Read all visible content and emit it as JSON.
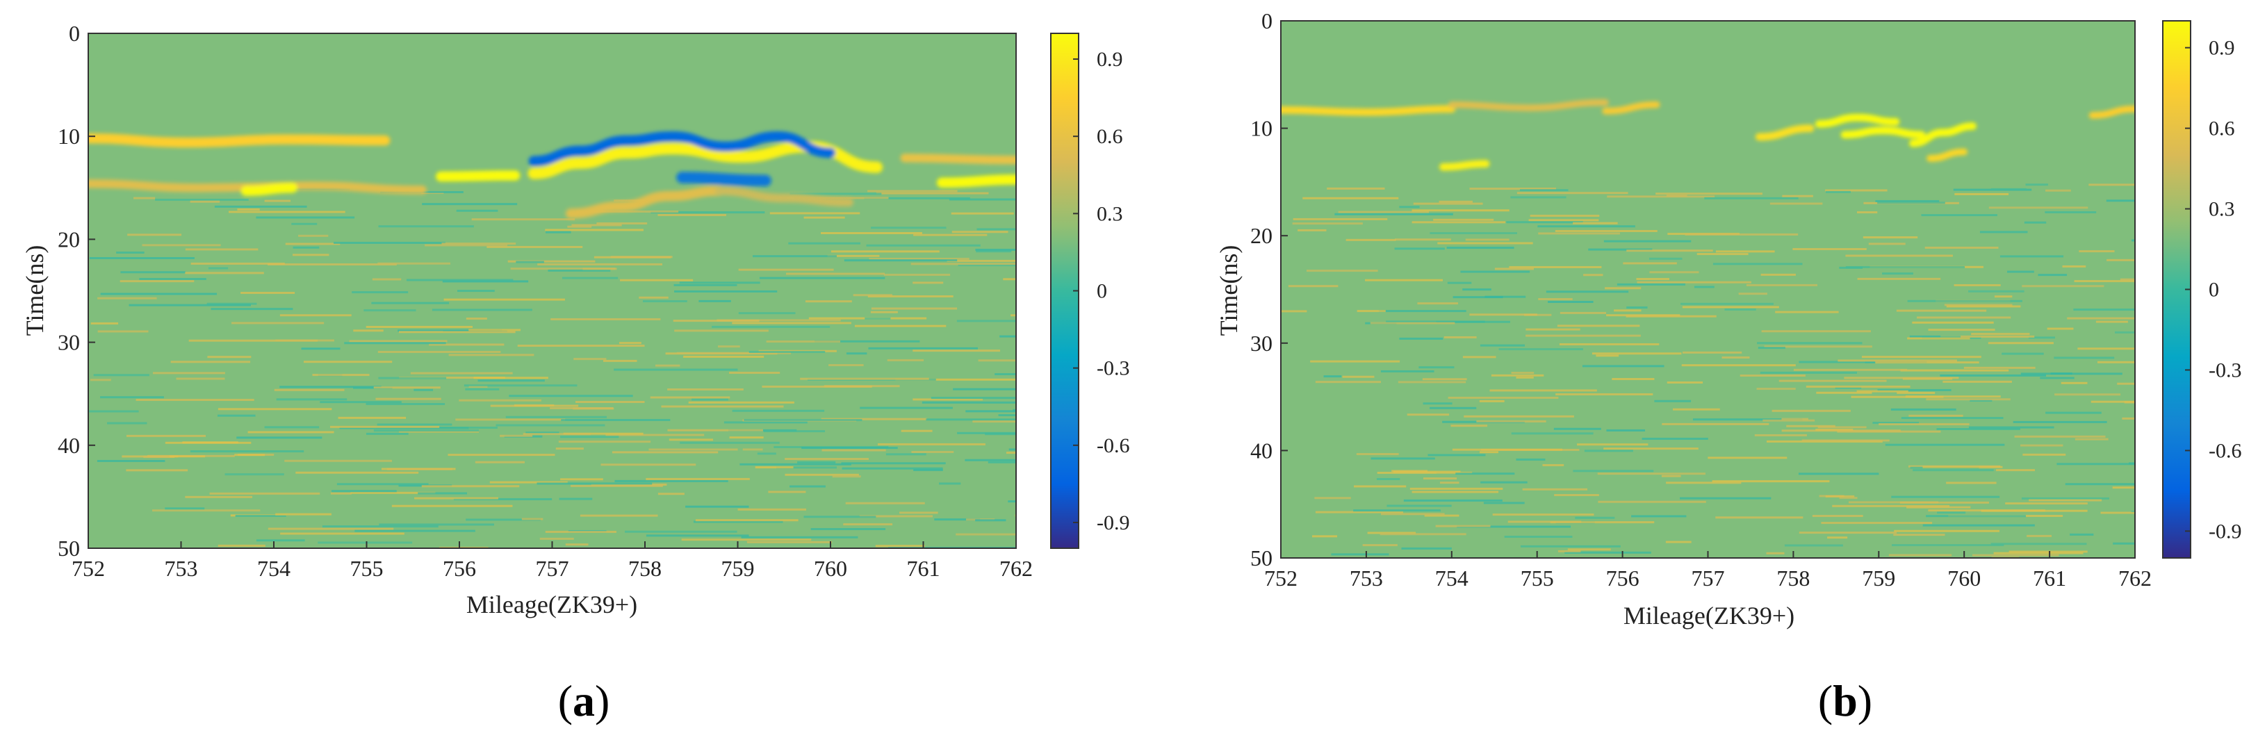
{
  "panels": [
    {
      "panel_label_prefix": "(",
      "panel_letter": "a",
      "panel_label_suffix": ")"
    },
    {
      "panel_label_prefix": "(",
      "panel_letter": "b",
      "panel_label_suffix": ")"
    }
  ],
  "chart_data": [
    {
      "type": "heatmap",
      "title": "",
      "xlabel": "Mileage(ZK39+)",
      "ylabel": "Time(ns)",
      "xlim": [
        752,
        762
      ],
      "ylim": [
        0,
        50
      ],
      "y_inverted": true,
      "x_ticks": [
        "752",
        "753",
        "754",
        "755",
        "756",
        "757",
        "758",
        "759",
        "760",
        "761",
        "762"
      ],
      "y_ticks": [
        "0",
        "10",
        "20",
        "30",
        "40",
        "50"
      ],
      "colorbar": {
        "range": [
          -1,
          1
        ],
        "ticks": [
          "0.9",
          "0.6",
          "0.3",
          "0",
          "-0.3",
          "-0.6",
          "-0.9"
        ],
        "colormap": "parula"
      },
      "background_value": 0.2,
      "reflections": [
        {
          "x": [
            752,
            755.2
          ],
          "t": [
            10.2,
            10.6,
            10.3,
            10.4
          ],
          "value": 0.75,
          "width": 0.7
        },
        {
          "x": [
            752,
            755.6
          ],
          "t": [
            14.6,
            15.0,
            14.8,
            15.2
          ],
          "value": 0.55,
          "width": 0.6
        },
        {
          "x": [
            753.7,
            754.2
          ],
          "t": [
            15.3,
            15.0
          ],
          "value": 1.0,
          "width": 0.7
        },
        {
          "x": [
            755.8,
            756.6
          ],
          "t": [
            13.9,
            13.8
          ],
          "value": 1.0,
          "width": 0.7
        },
        {
          "x": [
            756.8,
            758.3
          ],
          "t": [
            13.6,
            12.6,
            11.6,
            11.2
          ],
          "value": 0.95,
          "width": 0.8
        },
        {
          "x": [
            758.3,
            760.5
          ],
          "t": [
            11.2,
            12.0,
            11.0,
            13.0
          ],
          "value": 0.95,
          "width": 0.8
        },
        {
          "x": [
            756.8,
            758.3
          ],
          "t": [
            12.4,
            11.4,
            10.4,
            10.0
          ],
          "value": -0.7,
          "width": 0.7
        },
        {
          "x": [
            758.3,
            760.0
          ],
          "t": [
            10.0,
            11.0,
            10.0,
            11.6
          ],
          "value": -0.7,
          "width": 0.7
        },
        {
          "x": [
            758.4,
            759.3
          ],
          "t": [
            14.0,
            14.3
          ],
          "value": -0.6,
          "width": 0.8
        },
        {
          "x": [
            757.2,
            758.8
          ],
          "t": [
            17.5,
            16.8,
            15.8,
            15.3
          ],
          "value": 0.55,
          "width": 0.7
        },
        {
          "x": [
            758.8,
            760.2
          ],
          "t": [
            15.3,
            16.0,
            16.4
          ],
          "value": 0.45,
          "width": 0.6
        },
        {
          "x": [
            761.2,
            762
          ],
          "t": [
            14.5,
            14.2
          ],
          "value": 1.0,
          "width": 0.7
        },
        {
          "x": [
            760.8,
            762
          ],
          "t": [
            12.1,
            12.3
          ],
          "value": 0.6,
          "width": 0.6
        }
      ]
    },
    {
      "type": "heatmap",
      "title": "",
      "xlabel": "Mileage(ZK39+)",
      "ylabel": "Time(ns)",
      "xlim": [
        752,
        762
      ],
      "ylim": [
        0,
        50
      ],
      "y_inverted": true,
      "x_ticks": [
        "752",
        "753",
        "754",
        "755",
        "756",
        "757",
        "758",
        "759",
        "760",
        "761",
        "762"
      ],
      "y_ticks": [
        "0",
        "10",
        "20",
        "30",
        "40",
        "50"
      ],
      "colorbar": {
        "range": [
          -1,
          1
        ],
        "ticks": [
          "0.9",
          "0.6",
          "0.3",
          "0",
          "-0.3",
          "-0.6",
          "-0.9"
        ],
        "colormap": "parula"
      },
      "background_value": 0.2,
      "reflections": [
        {
          "x": [
            752,
            754.0
          ],
          "t": [
            8.3,
            8.5,
            8.2
          ],
          "value": 0.8,
          "width": 0.5
        },
        {
          "x": [
            754.0,
            755.8
          ],
          "t": [
            7.8,
            8.1,
            7.6
          ],
          "value": 0.55,
          "width": 0.45
        },
        {
          "x": [
            755.8,
            756.4
          ],
          "t": [
            8.4,
            7.8
          ],
          "value": 0.7,
          "width": 0.45
        },
        {
          "x": [
            753.9,
            754.4
          ],
          "t": [
            13.6,
            13.3
          ],
          "value": 0.95,
          "width": 0.5
        },
        {
          "x": [
            757.6,
            758.2
          ],
          "t": [
            10.8,
            10.0
          ],
          "value": 0.85,
          "width": 0.5
        },
        {
          "x": [
            758.3,
            759.2
          ],
          "t": [
            9.6,
            9.0,
            9.4
          ],
          "value": 1.0,
          "width": 0.5
        },
        {
          "x": [
            758.6,
            759.5
          ],
          "t": [
            10.6,
            10.2,
            10.6
          ],
          "value": 1.0,
          "width": 0.5
        },
        {
          "x": [
            759.4,
            760.1
          ],
          "t": [
            11.4,
            10.4,
            9.8
          ],
          "value": 1.0,
          "width": 0.5
        },
        {
          "x": [
            759.6,
            760.0
          ],
          "t": [
            12.8,
            12.2
          ],
          "value": 0.8,
          "width": 0.45
        },
        {
          "x": [
            761.5,
            762
          ],
          "t": [
            8.8,
            8.2
          ],
          "value": 0.75,
          "width": 0.45
        }
      ]
    }
  ]
}
